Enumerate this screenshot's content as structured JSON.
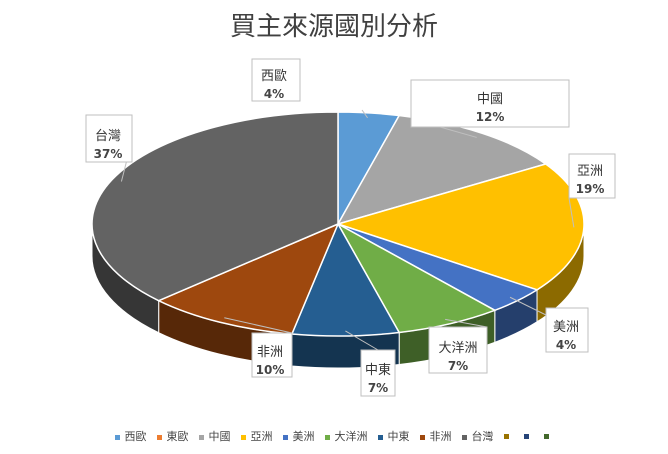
{
  "chart_data": {
    "type": "pie",
    "title": "買主來源國別分析",
    "slices": [
      {
        "name": "西歐",
        "value": 4,
        "label": "4%",
        "color": "#5B9BD5"
      },
      {
        "name": "中國",
        "value": 12,
        "label": "12%",
        "color": "#A5A5A5"
      },
      {
        "name": "亞洲",
        "value": 19,
        "label": "19%",
        "color": "#FFC000"
      },
      {
        "name": "美洲",
        "value": 4,
        "label": "4%",
        "color": "#4472C4"
      },
      {
        "name": "大洋洲",
        "value": 7,
        "label": "7%",
        "color": "#70AD47"
      },
      {
        "name": "中東",
        "value": 7,
        "label": "7%",
        "color": "#255E91"
      },
      {
        "name": "非洲",
        "value": 10,
        "label": "10%",
        "color": "#9E480E"
      },
      {
        "name": "台灣",
        "value": 37,
        "label": "37%",
        "color": "#636363"
      }
    ],
    "legend": {
      "position": "bottom",
      "entries": [
        {
          "name": "西歐",
          "color": "#5B9BD5"
        },
        {
          "name": "東歐",
          "color": "#ED7D31"
        },
        {
          "name": "中國",
          "color": "#A5A5A5"
        },
        {
          "name": "亞洲",
          "color": "#FFC000"
        },
        {
          "name": "美洲",
          "color": "#4472C4"
        },
        {
          "name": "大洋洲",
          "color": "#70AD47"
        },
        {
          "name": "中東",
          "color": "#255E91"
        },
        {
          "name": "非洲",
          "color": "#9E480E"
        },
        {
          "name": "台灣",
          "color": "#636363"
        },
        {
          "name": "",
          "color": "#997300"
        },
        {
          "name": "",
          "color": "#264478"
        },
        {
          "name": "",
          "color": "#43682B"
        }
      ]
    }
  }
}
